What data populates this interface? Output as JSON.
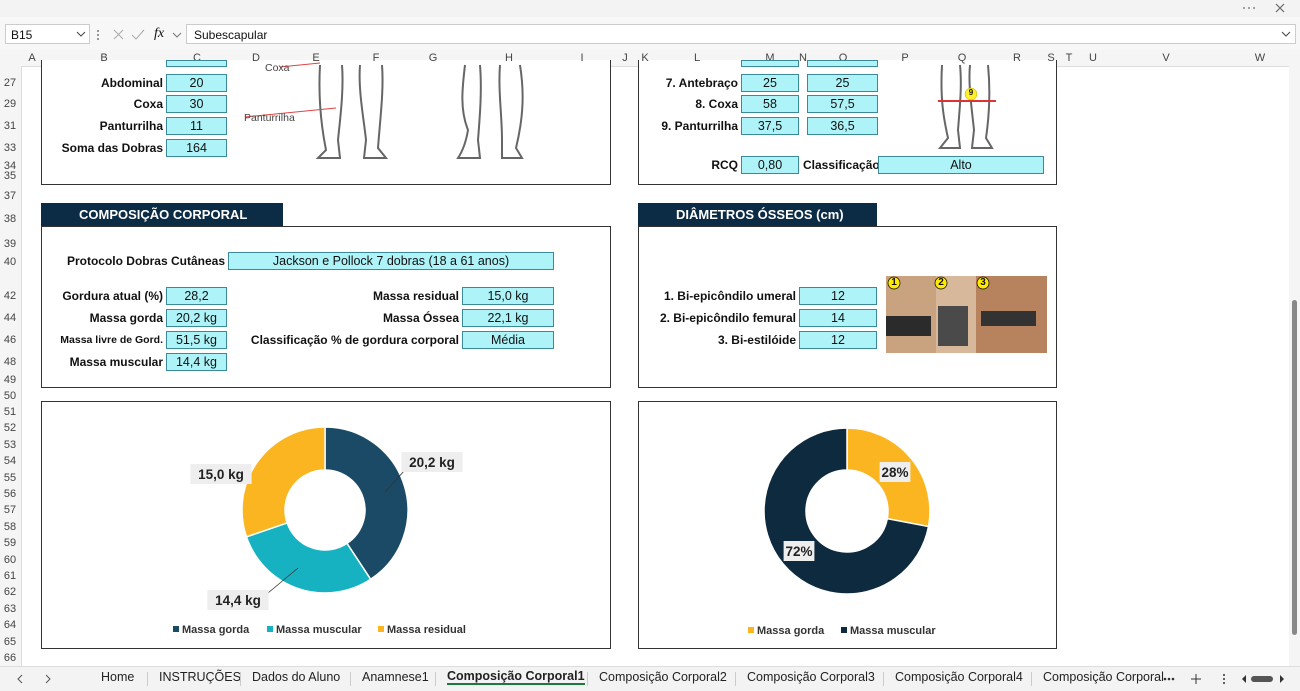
{
  "name_box": "B15",
  "function_button": "fx",
  "formula": "Subescapular",
  "columns": [
    "A",
    "B",
    "C",
    "D",
    "E",
    "F",
    "G",
    "H",
    "I",
    "J",
    "K",
    "L",
    "M",
    "N",
    "O",
    "P",
    "Q",
    "R",
    "S",
    "T",
    "U",
    "V",
    "W"
  ],
  "rows": [
    "27",
    "29",
    "31",
    "33",
    "34",
    "35",
    "37",
    "38",
    "39",
    "40",
    "42",
    "44",
    "46",
    "48",
    "49",
    "50",
    "51",
    "52",
    "53",
    "54",
    "55",
    "56",
    "57",
    "58",
    "59",
    "60",
    "61",
    "62",
    "63",
    "64",
    "65",
    "66"
  ],
  "skinfolds": [
    {
      "label": "Abdominal",
      "value": "20"
    },
    {
      "label": "Coxa",
      "value": "30"
    },
    {
      "label": "Panturrilha",
      "value": "11"
    },
    {
      "label": "Soma das Dobras",
      "value": "164"
    }
  ],
  "figure_labels": [
    "Coxa",
    "Panturrilha"
  ],
  "circumferences": [
    {
      "label": "7. Antebraço",
      "right": "25",
      "left": "25"
    },
    {
      "label": "8. Coxa",
      "right": "58",
      "left": "57,5"
    },
    {
      "label": "9. Panturrilha",
      "right": "37,5",
      "left": "36,5"
    }
  ],
  "figure_marker": "9",
  "rcq": {
    "label": "RCQ",
    "value": "0,80"
  },
  "classification": {
    "label": "Classificação",
    "value": "Alto"
  },
  "body_composition": {
    "title": "COMPOSIÇÃO CORPORAL",
    "protocol": {
      "label": "Protocolo Dobras Cutâneas",
      "value": "Jackson e Pollock 7 dobras (18 a 61 anos)"
    },
    "left": [
      {
        "label": "Gordura atual (%)",
        "value": "28,2"
      },
      {
        "label": "Massa gorda",
        "value": "20,2 kg"
      },
      {
        "label": "Massa livre de Gord.",
        "value": "51,5 kg"
      },
      {
        "label": "Massa muscular",
        "value": "14,4 kg"
      }
    ],
    "right": [
      {
        "label": "Massa residual",
        "value": "15,0 kg"
      },
      {
        "label": "Massa Óssea",
        "value": "22,1 kg"
      },
      {
        "label": "Classificação % de gordura corporal",
        "value": "Média"
      }
    ]
  },
  "bone_diameters": {
    "title": "DIÂMETROS ÓSSEOS (cm)",
    "items": [
      {
        "label": "1.  Bi-epicôndilo umeral",
        "value": "12"
      },
      {
        "label": "2. Bi-epicôndilo femural",
        "value": "14"
      },
      {
        "label": "3. Bi-estilóide",
        "value": "12"
      }
    ],
    "photo_markers": [
      "1",
      "2",
      "3"
    ]
  },
  "chart_data": [
    {
      "type": "donut",
      "categories": [
        "Massa gorda",
        "Massa muscular",
        "Massa residual"
      ],
      "values": [
        20.2,
        14.4,
        15.0
      ],
      "value_labels": [
        "20,2 kg",
        "14,4 kg",
        "15,0 kg"
      ],
      "colors": [
        "#1a4a66",
        "#17b2c2",
        "#fbb520"
      ]
    },
    {
      "type": "donut",
      "categories": [
        "Massa gorda",
        "Massa muscular"
      ],
      "values": [
        28,
        72
      ],
      "value_labels": [
        "28%",
        "72%"
      ],
      "colors": [
        "#fbb520",
        "#0e2a3e"
      ]
    }
  ],
  "tabs": [
    "Home",
    "INSTRUÇÕES",
    "Dados do Aluno",
    "Anamnese1",
    "Composição Corporal1",
    "Composição Corporal2",
    "Composição Corporal3",
    "Composição Corporal4",
    "Composição Corporal"
  ],
  "active_tab": 4
}
